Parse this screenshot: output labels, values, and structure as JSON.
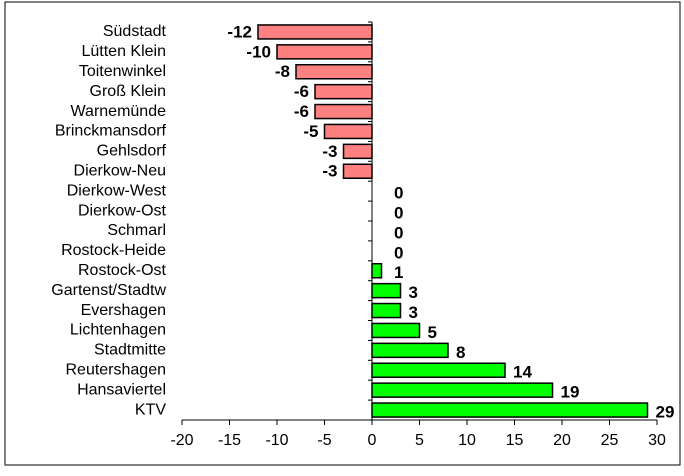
{
  "chart_data": {
    "type": "barh",
    "categories": [
      "Südstadt",
      "Lütten Klein",
      "Toitenwinkel",
      "Groß Klein",
      "Warnemünde",
      "Brinckmansdorf",
      "Gehlsdorf",
      "Dierkow-Neu",
      "Dierkow-West",
      "Dierkow-Ost",
      "Schmarl",
      "Rostock-Heide",
      "Rostock-Ost",
      "Gartenst/Stadtw",
      "Evershagen",
      "Lichtenhagen",
      "Stadtmitte",
      "Reutershagen",
      "Hansaviertel",
      "KTV"
    ],
    "values": [
      -12,
      -10,
      -8,
      -6,
      -6,
      -5,
      -3,
      -3,
      0,
      0,
      0,
      0,
      1,
      3,
      3,
      5,
      8,
      14,
      19,
      29
    ],
    "negative_color": "#ff8080",
    "positive_color": "#00ff00",
    "xlim": [
      -20,
      30
    ],
    "xticks": [
      -20,
      -15,
      -10,
      -5,
      0,
      5,
      10,
      15,
      20,
      25,
      30
    ]
  }
}
